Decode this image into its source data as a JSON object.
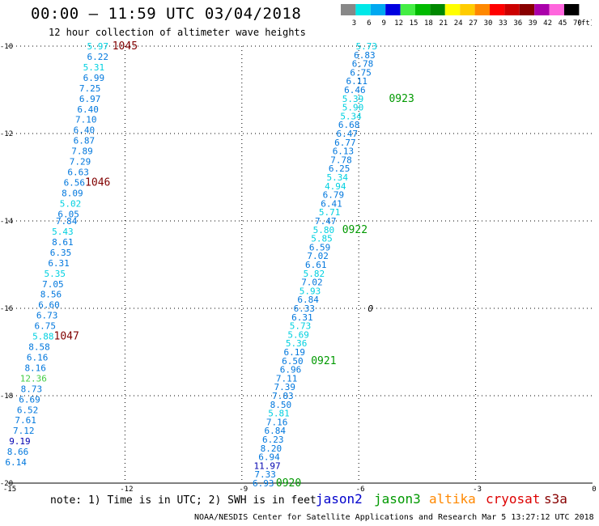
{
  "header": {
    "title": "00:00 – 11:59 UTC 03/04/2018",
    "subtitle": "12 hour collection of altimeter wave heights"
  },
  "colorbar": {
    "unit_label": "(ft)",
    "bins": [
      {
        "label": "3",
        "color": "#888888"
      },
      {
        "label": "6",
        "color": "#00e8e8"
      },
      {
        "label": "9",
        "color": "#00a8f0"
      },
      {
        "label": "12",
        "color": "#0000e0"
      },
      {
        "label": "15",
        "color": "#44ee44"
      },
      {
        "label": "18",
        "color": "#00bb00"
      },
      {
        "label": "21",
        "color": "#008800"
      },
      {
        "label": "24",
        "color": "#ffff00"
      },
      {
        "label": "27",
        "color": "#ffcc00"
      },
      {
        "label": "30",
        "color": "#ff8800"
      },
      {
        "label": "33",
        "color": "#ff0000"
      },
      {
        "label": "36",
        "color": "#cc0000"
      },
      {
        "label": "39",
        "color": "#880000"
      },
      {
        "label": "42",
        "color": "#aa00aa"
      },
      {
        "label": "45",
        "color": "#ff66dd"
      },
      {
        "label": "70",
        "color": "#000000"
      }
    ]
  },
  "footer": {
    "note": "note: 1) Time is in UTC; 2) SWH is in feet",
    "credit": "NOAA/NESDIS Center for Satellite Applications and Research    Mar  5 13:27:12 UTC 2018",
    "legend": [
      {
        "name": "jason2",
        "color": "#0000cc"
      },
      {
        "name": "jason3",
        "color": "#009900"
      },
      {
        "name": "altika",
        "color": "#ff8800"
      },
      {
        "name": "cryosat",
        "color": "#dd0000"
      },
      {
        "name": "s3a",
        "color": "#880000"
      }
    ]
  },
  "chart_data": {
    "type": "scatter",
    "xlim": [
      -15,
      0
    ],
    "ylim": [
      -20,
      -10
    ],
    "x_ticks": [
      -15,
      -12,
      -9,
      -6,
      -3,
      0
    ],
    "y_ticks": [
      -10,
      -12,
      -14,
      -16,
      -18,
      -20
    ],
    "grid": true,
    "colors": {
      "cyan": "#00d0e0",
      "blue": "#0077dd",
      "navy": "#0000b0",
      "green_light": "#44cc44",
      "jason3": "#009900",
      "s3a": "#800000"
    },
    "tracks": [
      {
        "satellite": "s3a",
        "points": [
          {
            "x": -12.7,
            "y": -10.0,
            "v": "5.97",
            "c": "cyan"
          },
          {
            "x": -12.7,
            "y": -10.24,
            "v": "6.22",
            "c": "blue"
          },
          {
            "x": -12.8,
            "y": -10.48,
            "v": "5.31",
            "c": "cyan"
          },
          {
            "x": -12.8,
            "y": -10.72,
            "v": "6.99",
            "c": "blue"
          },
          {
            "x": -12.9,
            "y": -10.96,
            "v": "7.25",
            "c": "blue"
          },
          {
            "x": -12.9,
            "y": -11.2,
            "v": "6.97",
            "c": "blue"
          },
          {
            "x": -12.95,
            "y": -11.44,
            "v": "6.40",
            "c": "blue"
          },
          {
            "x": -13.0,
            "y": -11.68,
            "v": "7.10",
            "c": "blue"
          },
          {
            "x": -13.05,
            "y": -11.92,
            "v": "6.40",
            "c": "blue"
          },
          {
            "x": -13.05,
            "y": -12.16,
            "v": "6.87",
            "c": "blue"
          },
          {
            "x": -13.1,
            "y": -12.4,
            "v": "7.89",
            "c": "blue"
          },
          {
            "x": -13.15,
            "y": -12.64,
            "v": "7.29",
            "c": "blue"
          },
          {
            "x": -13.2,
            "y": -12.88,
            "v": "6.63",
            "c": "blue"
          },
          {
            "x": -13.3,
            "y": -13.12,
            "v": "6.56",
            "c": "blue"
          },
          {
            "x": -13.35,
            "y": -13.36,
            "v": "8.09",
            "c": "blue"
          },
          {
            "x": -13.4,
            "y": -13.6,
            "v": "5.02",
            "c": "cyan"
          },
          {
            "x": -13.45,
            "y": -13.84,
            "v": "6.05",
            "c": "blue"
          },
          {
            "x": -13.5,
            "y": -14.0,
            "v": "7.84",
            "c": "blue"
          },
          {
            "x": -13.6,
            "y": -14.24,
            "v": "5.43",
            "c": "cyan"
          },
          {
            "x": -13.6,
            "y": -14.48,
            "v": "8.61",
            "c": "blue"
          },
          {
            "x": -13.65,
            "y": -14.72,
            "v": "6.35",
            "c": "blue"
          },
          {
            "x": -13.7,
            "y": -14.96,
            "v": "6.31",
            "c": "blue"
          },
          {
            "x": -13.8,
            "y": -15.2,
            "v": "5.35",
            "c": "cyan"
          },
          {
            "x": -13.85,
            "y": -15.44,
            "v": "7.05",
            "c": "blue"
          },
          {
            "x": -13.9,
            "y": -15.68,
            "v": "8.56",
            "c": "blue"
          },
          {
            "x": -13.95,
            "y": -15.92,
            "v": "6.60",
            "c": "blue"
          },
          {
            "x": -14.0,
            "y": -16.16,
            "v": "6.73",
            "c": "blue"
          },
          {
            "x": -14.05,
            "y": -16.4,
            "v": "6.75",
            "c": "blue"
          },
          {
            "x": -14.1,
            "y": -16.64,
            "v": "5.88",
            "c": "cyan"
          },
          {
            "x": -14.2,
            "y": -16.88,
            "v": "8.58",
            "c": "blue"
          },
          {
            "x": -14.25,
            "y": -17.12,
            "v": "6.16",
            "c": "blue"
          },
          {
            "x": -14.3,
            "y": -17.36,
            "v": "8.16",
            "c": "blue"
          },
          {
            "x": -14.35,
            "y": -17.6,
            "v": "12.36",
            "c": "green_light"
          },
          {
            "x": -14.4,
            "y": -17.84,
            "v": "8.73",
            "c": "blue"
          },
          {
            "x": -14.45,
            "y": -18.08,
            "v": "6.69",
            "c": "blue"
          },
          {
            "x": -14.5,
            "y": -18.32,
            "v": "6.52",
            "c": "blue"
          },
          {
            "x": -14.55,
            "y": -18.56,
            "v": "7.61",
            "c": "blue"
          },
          {
            "x": -14.6,
            "y": -18.8,
            "v": "7.12",
            "c": "blue"
          },
          {
            "x": -14.7,
            "y": -19.04,
            "v": "9.19",
            "c": "navy"
          },
          {
            "x": -14.75,
            "y": -19.28,
            "v": "8.66",
            "c": "blue"
          },
          {
            "x": -14.8,
            "y": -19.52,
            "v": "6.14",
            "c": "blue"
          }
        ],
        "time_labels": [
          {
            "x": -12.0,
            "y": -10.0,
            "t": "1045"
          },
          {
            "x": -12.7,
            "y": -13.12,
            "t": "1046"
          },
          {
            "x": -13.5,
            "y": -16.64,
            "t": "1047"
          }
        ]
      },
      {
        "satellite": "jason3",
        "points": [
          {
            "x": -5.8,
            "y": -10.0,
            "v": "5.73",
            "c": "cyan"
          },
          {
            "x": -5.85,
            "y": -10.2,
            "v": "6.83",
            "c": "blue"
          },
          {
            "x": -5.9,
            "y": -10.4,
            "v": "6.78",
            "c": "blue"
          },
          {
            "x": -5.95,
            "y": -10.6,
            "v": "6.75",
            "c": "blue"
          },
          {
            "x": -6.05,
            "y": -10.8,
            "v": "6.11",
            "c": "blue"
          },
          {
            "x": -6.1,
            "y": -11.0,
            "v": "6.46",
            "c": "blue"
          },
          {
            "x": -6.15,
            "y": -11.2,
            "v": "5.39",
            "c": "cyan"
          },
          {
            "x": -6.15,
            "y": -11.4,
            "v": "5.90",
            "c": "cyan"
          },
          {
            "x": -6.2,
            "y": -11.6,
            "v": "5.34",
            "c": "cyan"
          },
          {
            "x": -6.25,
            "y": -11.8,
            "v": "6.68",
            "c": "blue"
          },
          {
            "x": -6.3,
            "y": -12.0,
            "v": "6.47",
            "c": "blue"
          },
          {
            "x": -6.35,
            "y": -12.2,
            "v": "6.77",
            "c": "blue"
          },
          {
            "x": -6.4,
            "y": -12.4,
            "v": "6.13",
            "c": "blue"
          },
          {
            "x": -6.45,
            "y": -12.6,
            "v": "7.78",
            "c": "blue"
          },
          {
            "x": -6.5,
            "y": -12.8,
            "v": "6.25",
            "c": "blue"
          },
          {
            "x": -6.55,
            "y": -13.0,
            "v": "5.34",
            "c": "cyan"
          },
          {
            "x": -6.6,
            "y": -13.2,
            "v": "4.94",
            "c": "cyan"
          },
          {
            "x": -6.65,
            "y": -13.4,
            "v": "6.79",
            "c": "blue"
          },
          {
            "x": -6.7,
            "y": -13.6,
            "v": "6.41",
            "c": "blue"
          },
          {
            "x": -6.75,
            "y": -13.8,
            "v": "5.71",
            "c": "cyan"
          },
          {
            "x": -6.85,
            "y": -14.0,
            "v": "7.47",
            "c": "blue"
          },
          {
            "x": -6.9,
            "y": -14.2,
            "v": "5.80",
            "c": "cyan"
          },
          {
            "x": -6.95,
            "y": -14.4,
            "v": "5.85",
            "c": "cyan"
          },
          {
            "x": -7.0,
            "y": -14.6,
            "v": "6.59",
            "c": "blue"
          },
          {
            "x": -7.05,
            "y": -14.8,
            "v": "7.02",
            "c": "blue"
          },
          {
            "x": -7.1,
            "y": -15.0,
            "v": "6.61",
            "c": "blue"
          },
          {
            "x": -7.15,
            "y": -15.2,
            "v": "5.82",
            "c": "cyan"
          },
          {
            "x": -7.2,
            "y": -15.4,
            "v": "7.02",
            "c": "blue"
          },
          {
            "x": -7.25,
            "y": -15.6,
            "v": "5.93",
            "c": "cyan"
          },
          {
            "x": -7.3,
            "y": -15.8,
            "v": "6.84",
            "c": "blue"
          },
          {
            "x": -7.4,
            "y": -16.0,
            "v": "6.33",
            "c": "blue"
          },
          {
            "x": -7.45,
            "y": -16.2,
            "v": "6.31",
            "c": "blue"
          },
          {
            "x": -7.5,
            "y": -16.4,
            "v": "5.73",
            "c": "cyan"
          },
          {
            "x": -7.55,
            "y": -16.6,
            "v": "5.69",
            "c": "cyan"
          },
          {
            "x": -7.6,
            "y": -16.8,
            "v": "5.36",
            "c": "cyan"
          },
          {
            "x": -7.65,
            "y": -17.0,
            "v": "6.19",
            "c": "blue"
          },
          {
            "x": -7.7,
            "y": -17.2,
            "v": "6.50",
            "c": "blue"
          },
          {
            "x": -7.75,
            "y": -17.4,
            "v": "6.96",
            "c": "blue"
          },
          {
            "x": -7.85,
            "y": -17.6,
            "v": "7.11",
            "c": "blue"
          },
          {
            "x": -7.9,
            "y": -17.8,
            "v": "7.39",
            "c": "blue"
          },
          {
            "x": -7.95,
            "y": -18.0,
            "v": "7.83",
            "c": "blue"
          },
          {
            "x": -8.0,
            "y": -18.2,
            "v": "8.50",
            "c": "blue"
          },
          {
            "x": -8.05,
            "y": -18.4,
            "v": "5.81",
            "c": "cyan"
          },
          {
            "x": -8.1,
            "y": -18.6,
            "v": "7.16",
            "c": "blue"
          },
          {
            "x": -8.15,
            "y": -18.8,
            "v": "6.84",
            "c": "blue"
          },
          {
            "x": -8.2,
            "y": -19.0,
            "v": "6.23",
            "c": "blue"
          },
          {
            "x": -8.25,
            "y": -19.2,
            "v": "8.20",
            "c": "blue"
          },
          {
            "x": -8.3,
            "y": -19.4,
            "v": "6.94",
            "c": "blue"
          },
          {
            "x": -8.35,
            "y": -19.6,
            "v": "11.97",
            "c": "navy"
          },
          {
            "x": -8.4,
            "y": -19.8,
            "v": "7.33",
            "c": "blue"
          },
          {
            "x": -8.45,
            "y": -20.0,
            "v": "6.93",
            "c": "blue"
          }
        ],
        "time_labels": [
          {
            "x": -4.9,
            "y": -11.2,
            "t": "0923"
          },
          {
            "x": -6.1,
            "y": -14.2,
            "t": "0922"
          },
          {
            "x": -6.9,
            "y": -17.2,
            "t": "0921"
          },
          {
            "x": -7.8,
            "y": -20.0,
            "t": "0920"
          }
        ]
      }
    ],
    "other_marks": [
      {
        "x": -5.7,
        "y": -16.0,
        "t": "0"
      }
    ]
  }
}
